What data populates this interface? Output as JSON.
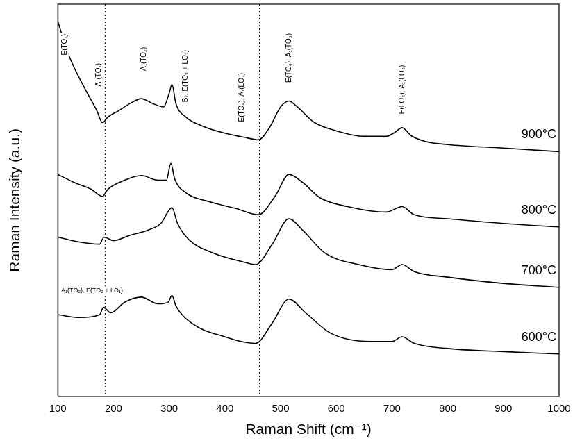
{
  "chart_data": {
    "type": "line",
    "x_label": "Raman Shift (cm⁻¹)",
    "y_label": "Raman Intensity (a.u.)",
    "xlim": [
      100,
      1000
    ],
    "xticks": [
      100,
      200,
      300,
      400,
      500,
      600,
      700,
      800,
      900,
      1000
    ],
    "ylim": [
      0,
      100
    ],
    "yticks": [],
    "tick_labels": "x",
    "grid": false,
    "reference_lines": [
      185,
      462
    ],
    "peak_labels": [
      {
        "text": "E(TO₁)",
        "x": 112,
        "y": 87
      },
      {
        "text": "A₁(TO₁)",
        "x": 174,
        "y": 79
      },
      {
        "text": "A₁(TO₂)",
        "x": 255,
        "y": 83
      },
      {
        "text": "B₁, E(TO₃ + LO₂)",
        "x": 330,
        "y": 75
      },
      {
        "text": "E(TO₄), A₁(LO₂)",
        "x": 430,
        "y": 70
      },
      {
        "text": "E(TO₄), A₁(TO₃)",
        "x": 515,
        "y": 80
      },
      {
        "text": "E(LO₄), A₁(LO₃)",
        "x": 718,
        "y": 72
      }
    ],
    "annotations": [
      {
        "text": "A₁(TO₂), E(TO₂ + LO₁)",
        "x": 106,
        "y": 27
      }
    ],
    "series": [
      {
        "name": "900°C",
        "color": "#000000",
        "x": [
          100,
          120,
          150,
          170,
          180,
          190,
          210,
          230,
          250,
          270,
          290,
          300,
          305,
          312,
          330,
          360,
          400,
          440,
          460,
          480,
          500,
          515,
          530,
          560,
          600,
          650,
          690,
          705,
          718,
          735,
          760,
          800,
          900,
          1000
        ],
        "values": [
          95.6,
          86.9,
          78.1,
          72.9,
          69.8,
          71.2,
          72.9,
          74.7,
          75.9,
          74.7,
          73.8,
          77.3,
          79.5,
          74.7,
          71.2,
          68.9,
          67.1,
          65.9,
          65.4,
          68.5,
          73.8,
          75.3,
          73.8,
          69.9,
          67.7,
          66.3,
          66.3,
          67.3,
          68.5,
          66.4,
          65.0,
          64.2,
          63.3,
          62.4
        ]
      },
      {
        "name": "800°C",
        "color": "#000000",
        "x": [
          100,
          130,
          160,
          180,
          190,
          220,
          250,
          280,
          295,
          303,
          310,
          330,
          370,
          420,
          460,
          490,
          515,
          540,
          570,
          620,
          690,
          718,
          740,
          800,
          900,
          1000
        ],
        "values": [
          56.6,
          54.5,
          52.8,
          51.0,
          52.8,
          55.1,
          56.3,
          55.1,
          55.1,
          59.4,
          55.4,
          51.9,
          49.7,
          47.9,
          46.3,
          51.0,
          56.6,
          54.5,
          50.7,
          48.4,
          47.0,
          48.4,
          46.3,
          45.3,
          44.1,
          43.2
        ]
      },
      {
        "name": "700°C",
        "color": "#000000",
        "x": [
          100,
          140,
          175,
          183,
          200,
          230,
          260,
          285,
          305,
          315,
          335,
          380,
          430,
          455,
          485,
          515,
          540,
          580,
          640,
          700,
          718,
          740,
          800,
          900,
          1000
        ],
        "values": [
          40.6,
          39.3,
          38.8,
          40.6,
          39.7,
          41.1,
          42.3,
          44.1,
          48.1,
          44.1,
          40.0,
          36.5,
          34.4,
          33.6,
          38.8,
          45.3,
          42.3,
          36.5,
          33.6,
          32.3,
          33.6,
          31.8,
          30.4,
          28.8,
          27.8
        ]
      },
      {
        "name": "600°C",
        "color": "#000000",
        "x": [
          100,
          140,
          175,
          182,
          195,
          220,
          250,
          280,
          298,
          305,
          312,
          340,
          400,
          455,
          485,
          515,
          545,
          590,
          660,
          700,
          718,
          740,
          800,
          900,
          1000
        ],
        "values": [
          20.8,
          20.1,
          20.8,
          22.7,
          21.3,
          24.0,
          25.3,
          23.6,
          24.0,
          25.7,
          23.1,
          18.7,
          15.2,
          13.5,
          18.7,
          24.8,
          21.3,
          16.1,
          14.0,
          14.0,
          15.2,
          13.5,
          12.2,
          11.4,
          10.8
        ]
      }
    ]
  }
}
